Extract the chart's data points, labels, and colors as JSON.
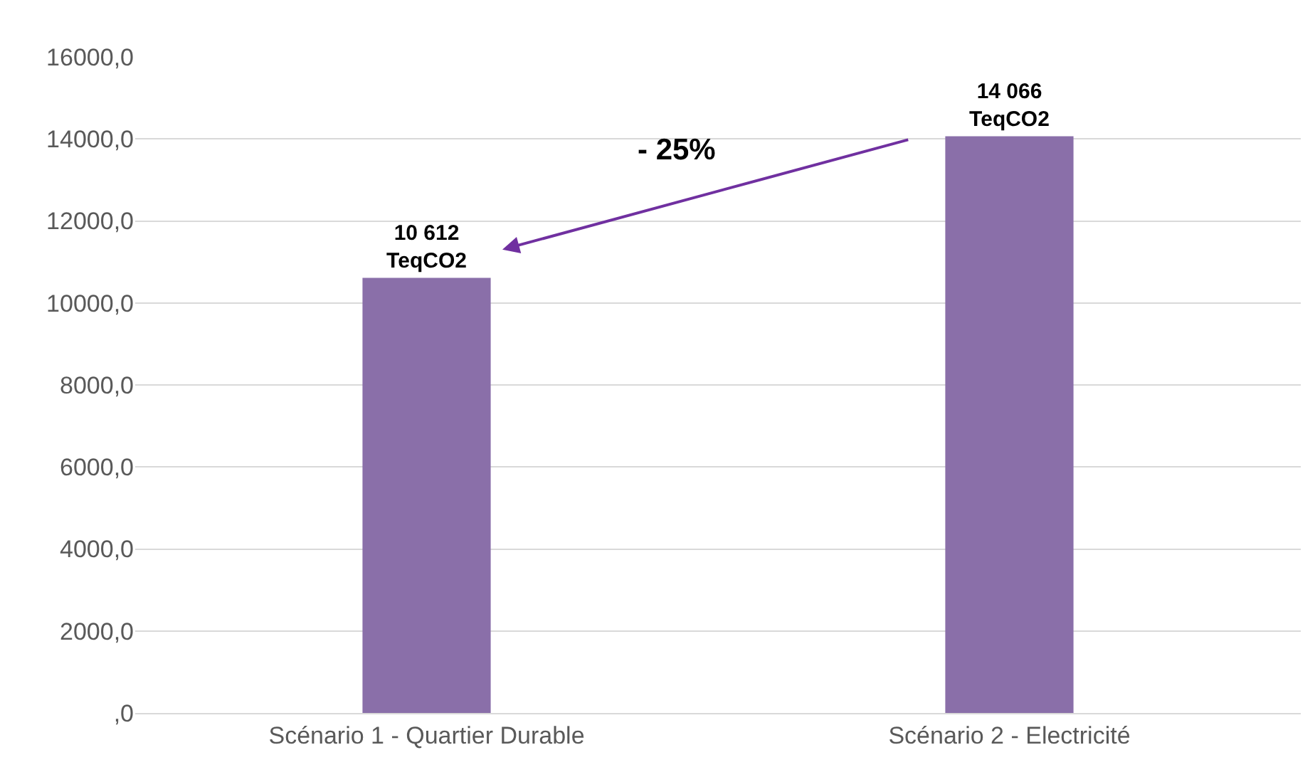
{
  "chart_data": {
    "type": "bar",
    "categories": [
      "Scénario 1 - Quartier Durable",
      "Scénario 2 - Electricité"
    ],
    "values": [
      10612,
      14066
    ],
    "value_labels": [
      "10 612\nTeqCO2",
      "14 066\nTeqCO2"
    ],
    "color": "#8a6fa9",
    "ylim": [
      0,
      16000
    ],
    "yticks": [
      {
        "value": 0,
        "label": ",0"
      },
      {
        "value": 2000,
        "label": "2000,0"
      },
      {
        "value": 4000,
        "label": "4000,0"
      },
      {
        "value": 6000,
        "label": "6000,0"
      },
      {
        "value": 8000,
        "label": "8000,0"
      },
      {
        "value": 10000,
        "label": "10000,0"
      },
      {
        "value": 12000,
        "label": "12000,0"
      },
      {
        "value": 14000,
        "label": "14000,0"
      },
      {
        "value": 16000,
        "label": "16000,0"
      }
    ],
    "grid": "y",
    "annotations": [
      "- 25%"
    ]
  }
}
